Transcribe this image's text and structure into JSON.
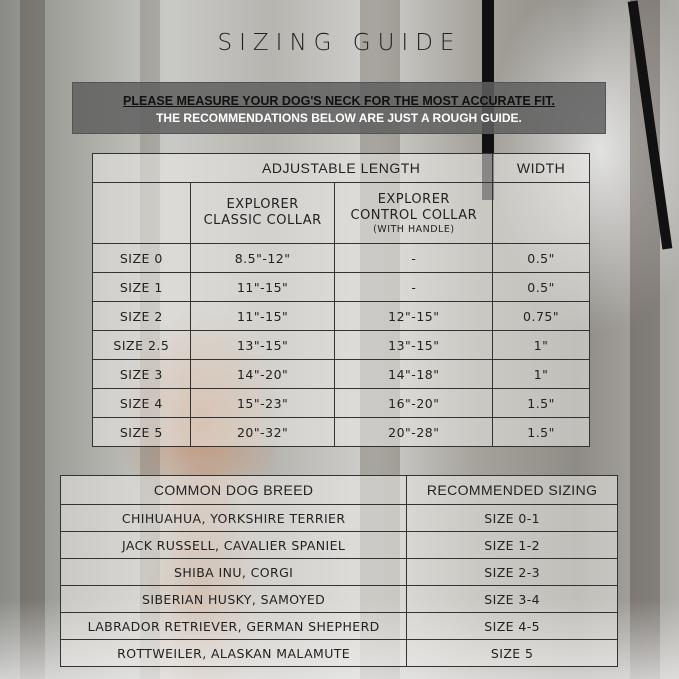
{
  "title": "SIZING GUIDE",
  "notice": {
    "line1": "PLEASE MEASURE YOUR DOG'S NECK FOR THE MOST ACCURATE FIT.",
    "line2": "THE RECOMMENDATIONS BELOW ARE JUST A ROUGH GUIDE."
  },
  "size_table": {
    "group_header": "ADJUSTABLE LENGTH",
    "width_header": "WIDTH",
    "col_classic": [
      "EXPLORER",
      "CLASSIC COLLAR"
    ],
    "col_control": [
      "EXPLORER",
      "CONTROL COLLAR",
      "(WITH HANDLE)"
    ],
    "rows": [
      {
        "size": "SIZE 0",
        "classic": "8.5\"-12\"",
        "control": "-",
        "width": "0.5\""
      },
      {
        "size": "SIZE 1",
        "classic": "11\"-15\"",
        "control": "-",
        "width": "0.5\""
      },
      {
        "size": "SIZE 2",
        "classic": "11\"-15\"",
        "control": "12\"-15\"",
        "width": "0.75\""
      },
      {
        "size": "SIZE 2.5",
        "classic": "13\"-15\"",
        "control": "13\"-15\"",
        "width": "1\""
      },
      {
        "size": "SIZE 3",
        "classic": "14\"-20\"",
        "control": "14\"-18\"",
        "width": "1\""
      },
      {
        "size": "SIZE 4",
        "classic": "15\"-23\"",
        "control": "16\"-20\"",
        "width": "1.5\""
      },
      {
        "size": "SIZE 5",
        "classic": "20\"-32\"",
        "control": "20\"-28\"",
        "width": "1.5\""
      }
    ]
  },
  "breed_table": {
    "col_breed": "COMMON DOG BREED",
    "col_size": "RECOMMENDED SIZING",
    "rows": [
      {
        "breed": "CHIHUAHUA, YORKSHIRE TERRIER",
        "size": "SIZE 0-1"
      },
      {
        "breed": "JACK RUSSELL, CAVALIER SPANIEL",
        "size": "SIZE 1-2"
      },
      {
        "breed": "SHIBA INU, CORGI",
        "size": "SIZE 2-3"
      },
      {
        "breed": "SIBERIAN HUSKY, SAMOYED",
        "size": "SIZE 3-4"
      },
      {
        "breed": "LABRADOR RETRIEVER, GERMAN SHEPHERD",
        "size": "SIZE 4-5"
      },
      {
        "breed": "ROTTWEILER, ALASKAN MALAMUTE",
        "size": "SIZE 5"
      }
    ]
  }
}
